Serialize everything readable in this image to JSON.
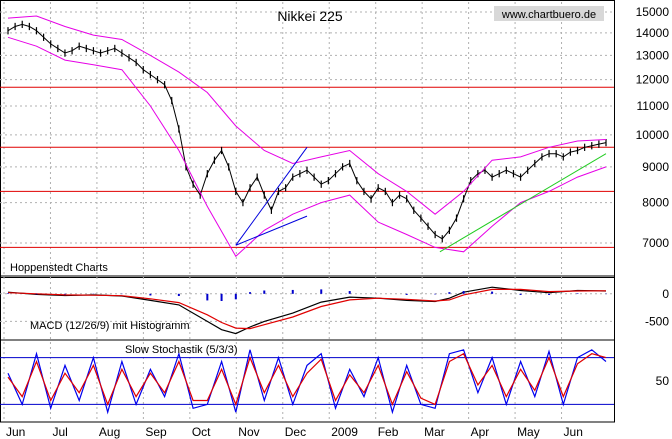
{
  "title": "Nikkei 225",
  "source": "www.chartbuero.de",
  "colors": {
    "price": "#000000",
    "bollinger": "#e600e6",
    "support": "#e00000",
    "trend_blue": "#0000dd",
    "trend_green": "#22cc22",
    "macd_line": "#000000",
    "macd_signal": "#e00000",
    "histogram": "#0000cc",
    "stoch_k": "#0000ee",
    "stoch_d": "#e00000",
    "stoch_band": "#0000cc",
    "grid": "#b0b0b0"
  },
  "chart_data": [
    {
      "type": "line",
      "panel": "price",
      "title": "Nikkei 225",
      "xlabel": "",
      "ylabel": "",
      "ylim": [
        6300,
        15400
      ],
      "y_scale": "log",
      "grid": true,
      "x_ticks": [
        "Jun",
        "Jul",
        "Aug",
        "Sep",
        "Oct",
        "Nov",
        "Dec",
        "2009",
        "Feb",
        "Mar",
        "Apr",
        "May",
        "Jun"
      ],
      "y_ticks": [
        15000,
        14000,
        13000,
        12000,
        11000,
        10000,
        9000,
        8000,
        7000
      ],
      "series": [
        {
          "role": "price",
          "x": [
            0,
            3,
            6,
            9,
            12,
            15,
            18,
            21,
            24,
            27,
            30,
            33,
            36,
            39,
            42,
            45,
            48,
            51,
            54,
            57,
            60,
            63,
            66,
            69,
            72,
            75,
            78,
            81,
            84,
            87,
            90,
            93,
            96,
            99,
            102,
            105,
            108,
            111,
            114,
            117,
            120,
            123,
            126,
            129,
            132,
            135,
            138,
            141,
            144,
            147,
            150,
            153,
            156,
            159,
            162,
            165,
            168,
            171,
            174,
            177,
            180,
            183,
            186,
            189,
            192,
            195,
            198,
            201,
            204,
            207,
            210,
            213,
            216,
            219,
            222,
            225,
            228,
            231,
            234,
            237,
            240,
            243,
            246,
            249,
            252
          ],
          "values": [
            14100,
            14300,
            14400,
            14300,
            14100,
            13800,
            13500,
            13300,
            13100,
            13200,
            13400,
            13300,
            13200,
            13100,
            13200,
            13300,
            13100,
            12900,
            12700,
            12400,
            12200,
            12000,
            11800,
            11200,
            10200,
            9000,
            8500,
            8200,
            8800,
            9200,
            9500,
            9000,
            8300,
            8000,
            8400,
            8700,
            8200,
            7800,
            8300,
            8400,
            8700,
            8800,
            8900,
            8700,
            8500,
            8600,
            8800,
            9000,
            9100,
            8600,
            8300,
            8100,
            8400,
            8300,
            8000,
            8200,
            8100,
            7800,
            7600,
            7400,
            7200,
            7100,
            7300,
            7600,
            8100,
            8600,
            8800,
            8900,
            8700,
            8800,
            8900,
            8800,
            8700,
            8900,
            9100,
            9300,
            9400,
            9400,
            9300,
            9450,
            9500,
            9600,
            9650,
            9700,
            9750
          ]
        },
        {
          "role": "bollinger_upper",
          "x": [
            0,
            12,
            24,
            36,
            48,
            60,
            72,
            84,
            96,
            108,
            120,
            132,
            144,
            156,
            168,
            180,
            192,
            204,
            216,
            228,
            240,
            252
          ],
          "values": [
            14700,
            14800,
            14300,
            13900,
            13700,
            13000,
            12300,
            11500,
            10300,
            9500,
            9100,
            9300,
            9500,
            8800,
            8300,
            7700,
            8300,
            9200,
            9300,
            9600,
            9800,
            9850
          ]
        },
        {
          "role": "bollinger_lower",
          "x": [
            0,
            12,
            24,
            36,
            48,
            60,
            72,
            84,
            96,
            108,
            120,
            132,
            144,
            156,
            168,
            180,
            192,
            204,
            216,
            228,
            240,
            252
          ],
          "values": [
            13800,
            13400,
            12800,
            12600,
            12400,
            11000,
            9500,
            7900,
            6700,
            7300,
            7700,
            8000,
            8200,
            7500,
            7200,
            6900,
            6800,
            7400,
            8000,
            8300,
            8700,
            9000
          ]
        }
      ],
      "horizontal_lines": [
        11700,
        9600,
        8300,
        6900
      ],
      "trendlines": [
        {
          "color": "trend_blue",
          "from": [
            96,
            6950
          ],
          "to": [
            126,
            9600
          ]
        },
        {
          "color": "trend_blue",
          "from": [
            96,
            6950
          ],
          "to": [
            126,
            7650
          ]
        },
        {
          "color": "trend_green",
          "from": [
            182,
            6800
          ],
          "to": [
            252,
            9400
          ]
        }
      ]
    },
    {
      "type": "line",
      "panel": "macd",
      "title": "MACD (12/26/9) mit Histogramm",
      "ylim": [
        -800,
        250
      ],
      "y_ticks": [
        0,
        -500
      ],
      "series": [
        {
          "role": "macd",
          "x": [
            0,
            12,
            24,
            36,
            48,
            60,
            72,
            84,
            90,
            96,
            102,
            108,
            120,
            132,
            144,
            156,
            168,
            180,
            186,
            192,
            204,
            216,
            228,
            240,
            252
          ],
          "values": [
            30,
            -10,
            -30,
            -20,
            -40,
            -120,
            -200,
            -500,
            -650,
            -720,
            -600,
            -500,
            -350,
            -150,
            -60,
            -80,
            -120,
            -140,
            -80,
            30,
            120,
            60,
            20,
            60,
            50
          ]
        },
        {
          "role": "signal",
          "x": [
            0,
            12,
            24,
            36,
            48,
            60,
            72,
            84,
            90,
            96,
            102,
            108,
            120,
            132,
            144,
            156,
            168,
            180,
            186,
            192,
            204,
            216,
            228,
            240,
            252
          ],
          "values": [
            20,
            0,
            -20,
            -25,
            -35,
            -90,
            -160,
            -380,
            -520,
            -620,
            -630,
            -560,
            -420,
            -230,
            -110,
            -80,
            -100,
            -130,
            -110,
            -20,
            80,
            80,
            40,
            50,
            55
          ]
        },
        {
          "role": "histogram",
          "x": [
            0,
            12,
            24,
            36,
            48,
            60,
            72,
            84,
            90,
            96,
            102,
            108,
            120,
            132,
            144,
            156,
            168,
            180,
            186,
            192,
            204,
            216,
            228,
            240,
            252
          ],
          "values": [
            10,
            -10,
            -10,
            5,
            -5,
            -30,
            -40,
            -120,
            -130,
            -100,
            30,
            60,
            70,
            80,
            50,
            0,
            -20,
            -10,
            30,
            50,
            40,
            -20,
            -20,
            10,
            -5
          ]
        }
      ]
    },
    {
      "type": "line",
      "panel": "stochastic",
      "title": "Slow Stochastik (5/3/3)",
      "ylim": [
        0,
        100
      ],
      "y_ticks": [
        50
      ],
      "bands": [
        80,
        20
      ],
      "series": [
        {
          "role": "k",
          "x": [
            0,
            6,
            12,
            18,
            24,
            30,
            36,
            42,
            48,
            54,
            60,
            66,
            72,
            78,
            84,
            90,
            96,
            102,
            108,
            114,
            120,
            126,
            132,
            138,
            144,
            150,
            156,
            162,
            168,
            174,
            180,
            186,
            192,
            198,
            204,
            210,
            216,
            222,
            228,
            234,
            240,
            246,
            252
          ],
          "values": [
            60,
            20,
            85,
            15,
            70,
            25,
            80,
            10,
            75,
            20,
            65,
            30,
            85,
            15,
            20,
            75,
            10,
            90,
            25,
            80,
            20,
            70,
            85,
            15,
            65,
            30,
            80,
            10,
            70,
            20,
            15,
            85,
            90,
            35,
            80,
            20,
            75,
            30,
            88,
            20,
            80,
            90,
            75
          ]
        },
        {
          "role": "d",
          "x": [
            0,
            6,
            12,
            18,
            24,
            30,
            36,
            42,
            48,
            54,
            60,
            66,
            72,
            78,
            84,
            90,
            96,
            102,
            108,
            114,
            120,
            126,
            132,
            138,
            144,
            150,
            156,
            162,
            168,
            174,
            180,
            186,
            192,
            198,
            204,
            210,
            216,
            222,
            228,
            234,
            240,
            246,
            252
          ],
          "values": [
            55,
            30,
            75,
            25,
            60,
            35,
            70,
            20,
            65,
            30,
            60,
            35,
            75,
            25,
            25,
            65,
            20,
            80,
            35,
            70,
            30,
            60,
            78,
            25,
            58,
            35,
            70,
            20,
            62,
            28,
            20,
            75,
            85,
            45,
            70,
            30,
            65,
            38,
            80,
            30,
            72,
            85,
            80
          ]
        }
      ]
    }
  ],
  "panel_labels": {
    "hoppenstedt": "Hoppenstedt Charts"
  }
}
